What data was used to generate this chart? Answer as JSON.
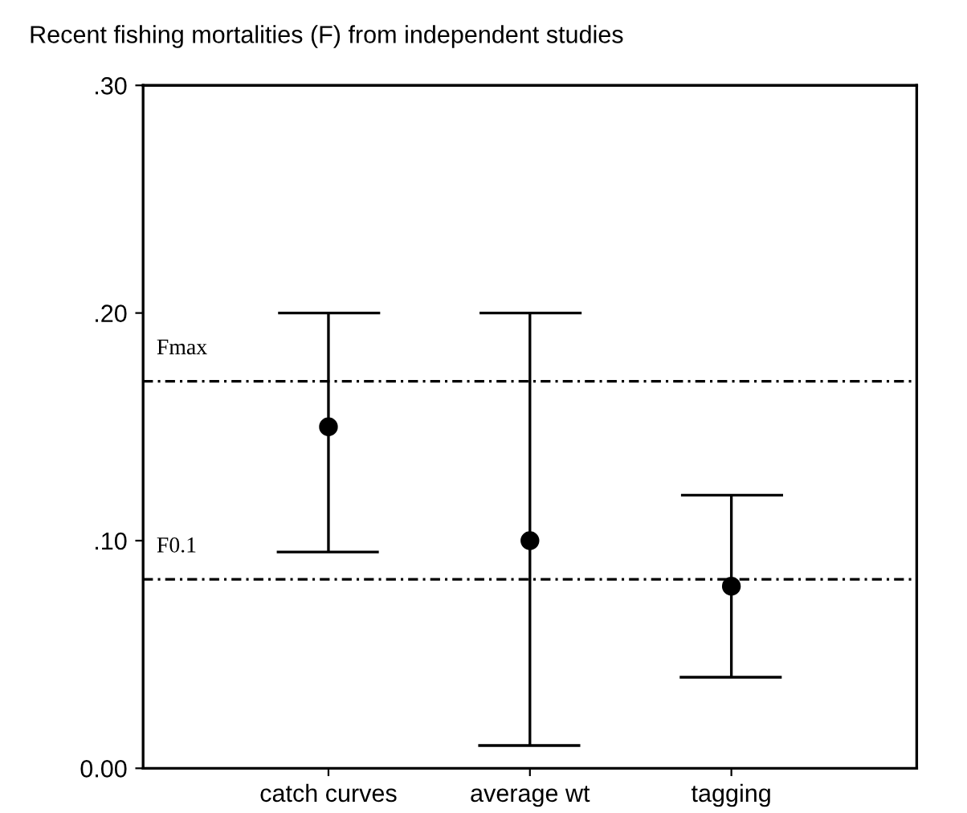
{
  "chart_data": {
    "type": "scatter",
    "title": "Recent fishing mortalities (F) from independent studies",
    "categories": [
      "catch curves",
      "average wt",
      "tagging"
    ],
    "series": [
      {
        "color": "#000000",
        "values": [
          0.15,
          0.1,
          0.08
        ],
        "errors": [
          [
            0.095,
            0.2
          ],
          [
            0.01,
            0.2
          ],
          [
            0.04,
            0.12
          ]
        ]
      }
    ],
    "marker": "circle",
    "ylim": [
      0,
      0.3
    ],
    "yticks": [
      {
        "value": 0,
        "label": "0.00"
      },
      {
        "value": 0.1,
        "label": ".10"
      },
      {
        "value": 0.2,
        "label": ".20"
      },
      {
        "value": 0.3,
        "label": ".30"
      }
    ],
    "ref_lines": [
      {
        "axis": "y",
        "value": 0.17,
        "label": "Fmax",
        "color": "#000000",
        "line_style": "dashed"
      },
      {
        "axis": "y",
        "value": 0.083,
        "label": "F0.1",
        "color": "#000000",
        "line_style": "dashed"
      }
    ],
    "grid": false,
    "legend": false
  }
}
